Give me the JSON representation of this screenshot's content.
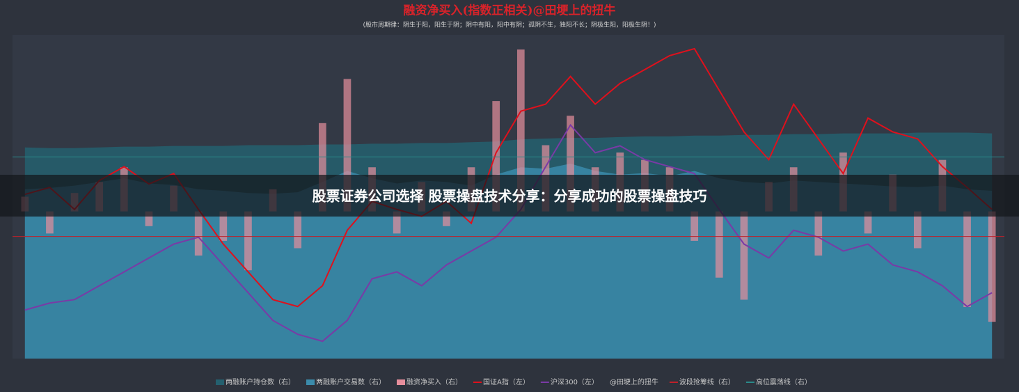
{
  "chart_data": {
    "type": "combo",
    "title": "融资净买入(指数正相关)@田埂上的扭牛",
    "subtitle": "(股市周期律：阴生于阳，阳生于阴；阴中有阳，阳中有阴；孤阴不生，独阳不长；阴极生阳，阳极生阴！)",
    "categories": [
      null,
      null,
      null,
      null,
      null,
      null,
      null,
      null,
      null,
      null,
      null,
      null,
      null,
      null,
      null,
      null,
      null,
      null,
      null,
      null,
      null,
      null,
      null,
      null,
      null,
      null,
      null,
      null,
      null,
      null,
      null,
      null,
      null,
      null,
      null,
      null,
      null,
      null,
      null,
      null
    ],
    "ylim": [
      2000,
      4800
    ],
    "y2lim": [
      -200,
      240
    ],
    "series": [
      {
        "name": "两融账户持仓数（右）",
        "kind": "area",
        "axis": "y2",
        "color": "#24606f",
        "values": [
          87,
          86,
          86,
          87,
          88,
          88,
          89,
          89,
          89,
          90,
          90,
          90,
          91,
          91,
          92,
          92,
          93,
          93,
          94,
          95,
          98,
          99,
          100,
          100,
          101,
          102,
          102,
          103,
          103,
          104,
          104,
          105,
          105,
          106,
          106,
          106,
          107,
          107,
          107,
          106
        ]
      },
      {
        "name": "两融账户交易数（右）",
        "kind": "area",
        "axis": "y2",
        "color": "#3b8bab",
        "values": [
          30,
          32,
          35,
          40,
          45,
          38,
          36,
          30,
          28,
          25,
          24,
          26,
          40,
          55,
          45,
          38,
          42,
          40,
          35,
          50,
          60,
          58,
          65,
          55,
          50,
          52,
          48,
          55,
          45,
          40,
          38,
          42,
          40,
          38,
          36,
          34,
          33,
          35,
          30,
          28
        ]
      },
      {
        "name": "融资净买入（右）",
        "kind": "bar",
        "axis": "y2",
        "color": "#e68e9c",
        "values": [
          20,
          -30,
          25,
          40,
          60,
          -20,
          35,
          -60,
          -40,
          -80,
          30,
          -50,
          120,
          180,
          60,
          -30,
          40,
          -20,
          60,
          150,
          220,
          90,
          130,
          60,
          80,
          70,
          60,
          -40,
          -90,
          -120,
          40,
          60,
          -60,
          80,
          -30,
          50,
          -50,
          70,
          -130,
          -150
        ]
      },
      {
        "name": "国证A指（左）",
        "kind": "line",
        "axis": "y",
        "color": "#e0101c",
        "values": [
          3420,
          3480,
          3290,
          3540,
          3660,
          3510,
          3600,
          3290,
          2990,
          2750,
          2510,
          2450,
          2630,
          3110,
          3360,
          3290,
          3230,
          3360,
          3170,
          3780,
          4140,
          4200,
          4440,
          4200,
          4380,
          4500,
          4620,
          4680,
          4320,
          3960,
          3720,
          4200,
          3900,
          3600,
          4080,
          3960,
          3900,
          3660,
          3480,
          3290
        ]
      },
      {
        "name": "沪深300（左）",
        "kind": "line",
        "axis": "y",
        "color": "#7a3aa6",
        "values": [
          2420,
          2480,
          2510,
          2630,
          2750,
          2870,
          2990,
          3050,
          2810,
          2570,
          2330,
          2210,
          2150,
          2330,
          2690,
          2750,
          2630,
          2810,
          2930,
          3050,
          3290,
          3660,
          4020,
          3780,
          3840,
          3720,
          3660,
          3600,
          3290,
          2990,
          2870,
          3110,
          3050,
          2930,
          2990,
          2810,
          2750,
          2630,
          2450,
          2570
        ]
      }
    ],
    "legend_note": "@田埂上的扭牛",
    "reference_lines": [
      {
        "name": "波段抢筹线（右）",
        "axis": "y2",
        "color": "#c0202a",
        "value": -34
      },
      {
        "name": "高位震荡线（右）",
        "axis": "y2",
        "color": "#2a8a8a",
        "value": 74
      }
    ]
  },
  "banner": "股票证券公司选择 股票操盘技术分享：分享成功的股票操盘技巧"
}
